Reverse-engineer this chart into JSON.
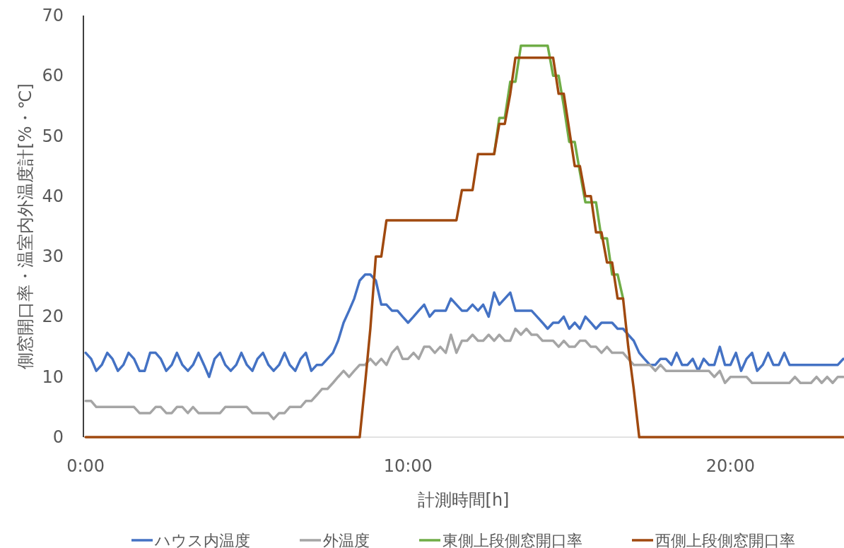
{
  "chart_data": {
    "type": "line",
    "xlabel": "計測時間[h]",
    "ylabel": "側窓開口率・温室内外温度計[%・℃]",
    "x": [
      0,
      0.17,
      0.33,
      0.5,
      0.67,
      0.83,
      1,
      1.17,
      1.33,
      1.5,
      1.67,
      1.83,
      2,
      2.17,
      2.33,
      2.5,
      2.67,
      2.83,
      3,
      3.17,
      3.33,
      3.5,
      3.67,
      3.83,
      4,
      4.17,
      4.33,
      4.5,
      4.67,
      4.83,
      5,
      5.17,
      5.33,
      5.5,
      5.67,
      5.83,
      6,
      6.17,
      6.33,
      6.5,
      6.67,
      6.83,
      7,
      7.17,
      7.33,
      7.5,
      7.67,
      7.83,
      8,
      8.17,
      8.33,
      8.5,
      8.67,
      8.83,
      9,
      9.17,
      9.33,
      9.5,
      9.67,
      9.83,
      10,
      10.17,
      10.33,
      10.5,
      10.67,
      10.83,
      11,
      11.17,
      11.33,
      11.5,
      11.67,
      11.83,
      12,
      12.17,
      12.33,
      12.5,
      12.67,
      12.83,
      13,
      13.17,
      13.33,
      13.5,
      13.67,
      13.83,
      14,
      14.17,
      14.33,
      14.5,
      14.67,
      14.83,
      15,
      15.17,
      15.33,
      15.5,
      15.67,
      15.83,
      16,
      16.17,
      16.33,
      16.5,
      16.67,
      16.83,
      17,
      17.17,
      17.33,
      17.5,
      17.67,
      17.83,
      18,
      18.17,
      18.33,
      18.5,
      18.67,
      18.83,
      19,
      19.17,
      19.33,
      19.5,
      19.67,
      19.83,
      20,
      20.17,
      20.33,
      20.5,
      20.67,
      20.83,
      21,
      21.17,
      21.33,
      21.5,
      21.67,
      21.83,
      22,
      22.17,
      22.33,
      22.5,
      22.67,
      22.83,
      23,
      23.17,
      23.33,
      23.5
    ],
    "series": [
      {
        "name": "ハウス内温度",
        "color": "#4472c4",
        "values": [
          14,
          13,
          11,
          12,
          14,
          13,
          11,
          12,
          14,
          13,
          11,
          11,
          14,
          14,
          13,
          11,
          12,
          14,
          12,
          11,
          12,
          14,
          12,
          10,
          13,
          14,
          12,
          11,
          12,
          14,
          12,
          11,
          13,
          14,
          12,
          11,
          12,
          14,
          12,
          11,
          13,
          14,
          11,
          12,
          12,
          13,
          14,
          16,
          19,
          21,
          23,
          26,
          27,
          27,
          26,
          22,
          22,
          21,
          21,
          20,
          19,
          20,
          21,
          22,
          20,
          21,
          21,
          21,
          23,
          22,
          21,
          21,
          22,
          21,
          22,
          20,
          24,
          22,
          23,
          24,
          21,
          21,
          21,
          21,
          20,
          19,
          18,
          19,
          19,
          20,
          18,
          19,
          18,
          20,
          19,
          18,
          19,
          19,
          19,
          18,
          18,
          17,
          16,
          14,
          13,
          12,
          12,
          13,
          13,
          12,
          14,
          12,
          12,
          13,
          11,
          13,
          12,
          12,
          15,
          12,
          12,
          14,
          11,
          13,
          14,
          11,
          12,
          14,
          12,
          12,
          14,
          12,
          12,
          12,
          12,
          12,
          12,
          12,
          12,
          12,
          12,
          13
        ]
      },
      {
        "name": "外温度",
        "color": "#a5a5a5",
        "values": [
          6,
          6,
          5,
          5,
          5,
          5,
          5,
          5,
          5,
          5,
          4,
          4,
          4,
          5,
          5,
          4,
          4,
          5,
          5,
          4,
          5,
          4,
          4,
          4,
          4,
          4,
          5,
          5,
          5,
          5,
          5,
          4,
          4,
          4,
          4,
          3,
          4,
          4,
          5,
          5,
          5,
          6,
          6,
          7,
          8,
          8,
          9,
          10,
          11,
          10,
          11,
          12,
          12,
          13,
          12,
          13,
          12,
          14,
          15,
          13,
          13,
          14,
          13,
          15,
          15,
          14,
          15,
          14,
          17,
          14,
          16,
          16,
          17,
          16,
          16,
          17,
          16,
          17,
          16,
          16,
          18,
          17,
          18,
          17,
          17,
          16,
          16,
          16,
          15,
          16,
          15,
          15,
          16,
          16,
          15,
          15,
          14,
          15,
          14,
          14,
          14,
          13,
          12,
          12,
          12,
          12,
          11,
          12,
          11,
          11,
          11,
          11,
          11,
          11,
          11,
          11,
          11,
          10,
          11,
          9,
          10,
          10,
          10,
          10,
          9,
          9,
          9,
          9,
          9,
          9,
          9,
          9,
          10,
          9,
          9,
          9,
          10,
          9,
          10,
          9,
          10,
          10
        ]
      },
      {
        "name": "東側上段側窓開口率",
        "color": "#70ad47",
        "x": [
          12.67,
          12.83,
          13,
          13.17,
          13.33,
          13.5,
          13.67,
          13.83,
          14,
          14.17,
          14.33,
          14.5,
          14.67,
          14.83,
          15,
          15.17,
          15.33,
          15.5,
          15.67,
          15.83,
          16,
          16.17,
          16.33,
          16.5,
          16.67
        ],
        "values": [
          47,
          53,
          53,
          59,
          59,
          65,
          65,
          65,
          65,
          65,
          65,
          60,
          60,
          55,
          49,
          49,
          44,
          39,
          39,
          39,
          33,
          33,
          27,
          27,
          23
        ]
      },
      {
        "name": "西側上段側窓開口率",
        "color": "#a0490f",
        "values": [
          0,
          0,
          0,
          0,
          0,
          0,
          0,
          0,
          0,
          0,
          0,
          0,
          0,
          0,
          0,
          0,
          0,
          0,
          0,
          0,
          0,
          0,
          0,
          0,
          0,
          0,
          0,
          0,
          0,
          0,
          0,
          0,
          0,
          0,
          0,
          0,
          0,
          0,
          0,
          0,
          0,
          0,
          0,
          0,
          0,
          0,
          0,
          0,
          0,
          0,
          0,
          0,
          9,
          18,
          30,
          30,
          36,
          36,
          36,
          36,
          36,
          36,
          36,
          36,
          36,
          36,
          36,
          36,
          36,
          36,
          41,
          41,
          41,
          47,
          47,
          47,
          47,
          52,
          52,
          57,
          63,
          63,
          63,
          63,
          63,
          63,
          63,
          63,
          57,
          57,
          51,
          45,
          45,
          40,
          40,
          34,
          34,
          29,
          29,
          23,
          23,
          15,
          8,
          0,
          0,
          0,
          0,
          0,
          0,
          0,
          0,
          0,
          0,
          0,
          0,
          0,
          0,
          0,
          0,
          0,
          0,
          0,
          0,
          0,
          0,
          0,
          0,
          0,
          0,
          0,
          0,
          0,
          0,
          0,
          0,
          0,
          0,
          0,
          0,
          0,
          0,
          0
        ]
      }
    ],
    "xlim": [
      -0.07,
      23.5
    ],
    "xticks": [
      {
        "value": 0,
        "label": "0:00"
      },
      {
        "value": 10,
        "label": "10:00"
      },
      {
        "value": 20,
        "label": "20:00"
      }
    ],
    "ylim": [
      0,
      70
    ],
    "yticks": [
      0,
      10,
      20,
      30,
      40,
      50,
      60,
      70
    ],
    "legend": "bottom"
  }
}
